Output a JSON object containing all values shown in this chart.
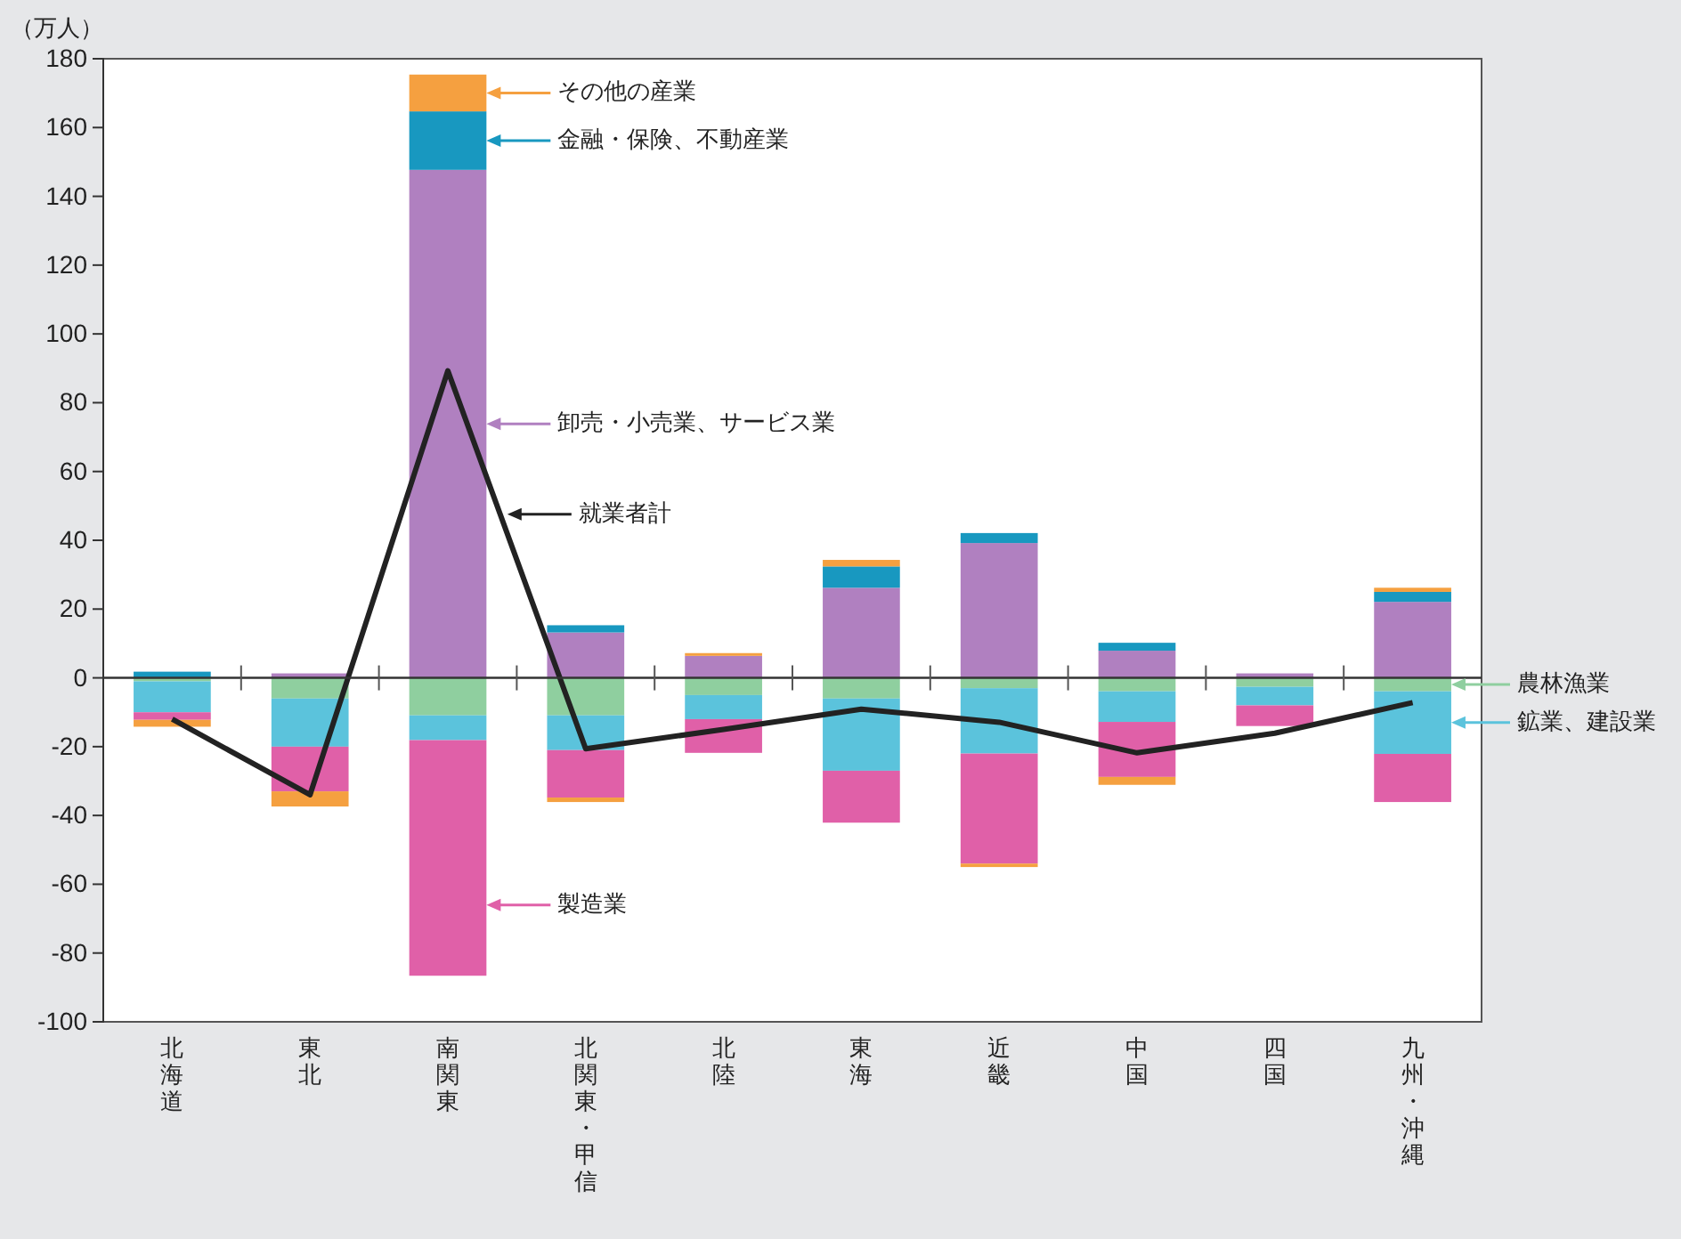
{
  "chart_data": {
    "type": "bar",
    "stacked": true,
    "ylabel": "（万人）",
    "legend": "right",
    "ref_lines": [
      {
        "axis": "y",
        "value": 0
      }
    ],
    "categories": [
      "北海道",
      "東北",
      "南関東",
      "北関東・甲信",
      "北陸",
      "東海",
      "近畿",
      "中国",
      "四国",
      "九州・沖縄"
    ],
    "ylim": [
      -100,
      180
    ],
    "yticks": [
      -100,
      -80,
      -60,
      -40,
      -20,
      0,
      20,
      40,
      60,
      80,
      100,
      120,
      140,
      160,
      180
    ],
    "series": [
      {
        "name": "農林漁業",
        "color": "#8fcf9f",
        "values": [
          -1,
          -6,
          -10.9,
          -10.9,
          -5,
          -6,
          -3,
          -3.9,
          -2.6,
          -3.9
        ]
      },
      {
        "name": "鉱業、建設業",
        "color": "#5bc3dc",
        "values": [
          -9,
          -14,
          -7.2,
          -10.1,
          -7,
          -21,
          -19,
          -8.9,
          -5.4,
          -18.2
        ]
      },
      {
        "name": "製造業",
        "color": "#e060a8",
        "values": [
          -2.2,
          -13,
          -68.5,
          -13.8,
          -9.8,
          -15.1,
          -32,
          -16,
          -6,
          -14
        ]
      },
      {
        "name": "卸売・小売業、サービス業",
        "color": "#b080c0",
        "values": [
          null,
          1.3,
          147.7,
          13.2,
          6.4,
          26.2,
          39.2,
          7.9,
          1.3,
          22.1
        ]
      },
      {
        "name": "金融・保険、不動産業",
        "color": "#1898c0",
        "values": [
          1.8,
          0,
          17,
          2.1,
          0,
          6.2,
          2.9,
          2.3,
          0,
          2.9
        ]
      },
      {
        "name": "その他の産業",
        "color": "#f5a040",
        "values": [
          -2,
          -4.4,
          10.7,
          -1.3,
          0.8,
          1.9,
          -1,
          -2.3,
          0,
          1.2
        ]
      },
      {
        "name": "就業者計",
        "type": "line",
        "color": "#222222",
        "values": [
          -12,
          -34,
          89.3,
          -20.6,
          -15,
          -9.1,
          -12.9,
          -21.8,
          -16.1,
          -7.2
        ]
      }
    ]
  }
}
